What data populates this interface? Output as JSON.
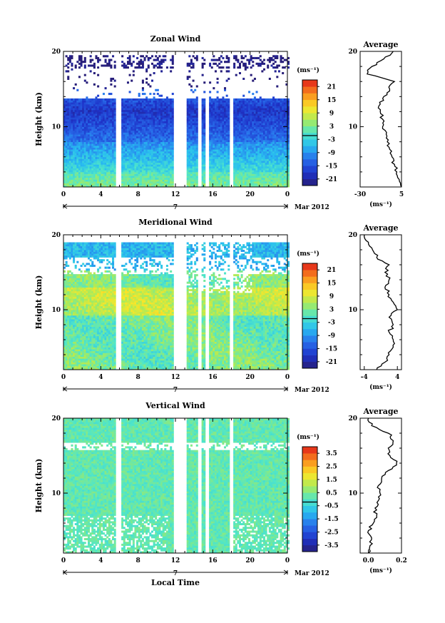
{
  "chart_data": [
    {
      "type": "heatmap",
      "title": "Zonal Wind",
      "ylabel": "Height (km)",
      "ylim": [
        2,
        20
      ],
      "yticks": [
        10,
        20
      ],
      "x_ticks": [
        "0",
        "4",
        "8",
        "12",
        "16",
        "20",
        "0"
      ],
      "date_label": "7",
      "month_label": "Mar 2012",
      "colorbar": {
        "unit": "(ms⁻¹)",
        "ticks": [
          "21",
          "15",
          "9",
          "3",
          "-3",
          "-9",
          "-15",
          "-21"
        ],
        "range": [
          -24,
          24
        ]
      },
      "profile": {
        "title": "Average",
        "xlabel": "(ms⁻¹)",
        "xlim": [
          -30,
          5
        ],
        "xticks": [
          "-30",
          "5"
        ],
        "yticks": [
          "10",
          "20"
        ],
        "height": [
          2,
          3,
          4,
          5,
          6,
          7,
          8,
          9,
          10,
          11,
          12,
          13,
          14,
          15,
          16,
          17,
          18,
          19,
          20
        ],
        "values": [
          5,
          3,
          1,
          -1,
          -3,
          -5,
          -7,
          -8,
          -11,
          -11,
          -13,
          -13,
          -10,
          -5,
          -1,
          -24,
          -20,
          -10,
          -2
        ]
      }
    },
    {
      "type": "heatmap",
      "title": "Meridional Wind",
      "ylabel": "Height (km)",
      "ylim": [
        2,
        20
      ],
      "yticks": [
        10,
        20
      ],
      "x_ticks": [
        "0",
        "4",
        "8",
        "12",
        "16",
        "20",
        "0"
      ],
      "date_label": "7",
      "month_label": "Mar 2012",
      "colorbar": {
        "unit": "(ms⁻¹)",
        "ticks": [
          "21",
          "15",
          "9",
          "3",
          "-3",
          "-9",
          "-15",
          "-21"
        ],
        "range": [
          -24,
          24
        ]
      },
      "profile": {
        "title": "Average",
        "xlabel": "(ms⁻¹)",
        "xlim": [
          -5,
          5
        ],
        "xticks": [
          "-4",
          "4"
        ],
        "yticks": [
          "10",
          "20"
        ],
        "height": [
          2,
          3,
          4,
          5,
          6,
          7,
          8,
          9,
          10,
          11,
          12,
          13,
          14,
          15,
          16,
          17,
          18,
          19,
          20
        ],
        "values": [
          -1,
          1,
          2,
          3,
          3,
          2,
          3,
          2,
          4,
          3,
          2,
          1,
          2,
          1,
          2,
          -1,
          -2,
          -3,
          -4
        ]
      }
    },
    {
      "type": "heatmap",
      "title": "Vertical Wind",
      "ylabel": "Height (km)",
      "ylim": [
        2,
        20
      ],
      "yticks": [
        10,
        20
      ],
      "x_ticks": [
        "0",
        "4",
        "8",
        "12",
        "16",
        "20",
        "0"
      ],
      "date_label": "7",
      "month_label": "Mar 2012",
      "xlabel": "Local Time",
      "colorbar": {
        "unit": "(ms⁻¹)",
        "ticks": [
          "3.5",
          "2.5",
          "1.5",
          "0.5",
          "-0.5",
          "-1.5",
          "-2.5",
          "-3.5"
        ],
        "range": [
          -4,
          4
        ]
      },
      "profile": {
        "title": "Average",
        "xlabel": "(ms⁻¹)",
        "xlim": [
          -0.05,
          0.2
        ],
        "xticks": [
          "0.0",
          "0.2"
        ],
        "yticks": [
          "10",
          "20"
        ],
        "height": [
          2,
          3,
          4,
          5,
          6,
          7,
          8,
          9,
          10,
          11,
          12,
          13,
          14,
          15,
          16,
          17,
          18,
          19,
          20
        ],
        "values": [
          0.0,
          0.01,
          0.02,
          0.0,
          0.03,
          0.05,
          0.04,
          0.06,
          0.07,
          0.06,
          0.08,
          0.12,
          0.17,
          0.13,
          0.12,
          0.15,
          0.12,
          0.02,
          0.0
        ]
      }
    }
  ]
}
